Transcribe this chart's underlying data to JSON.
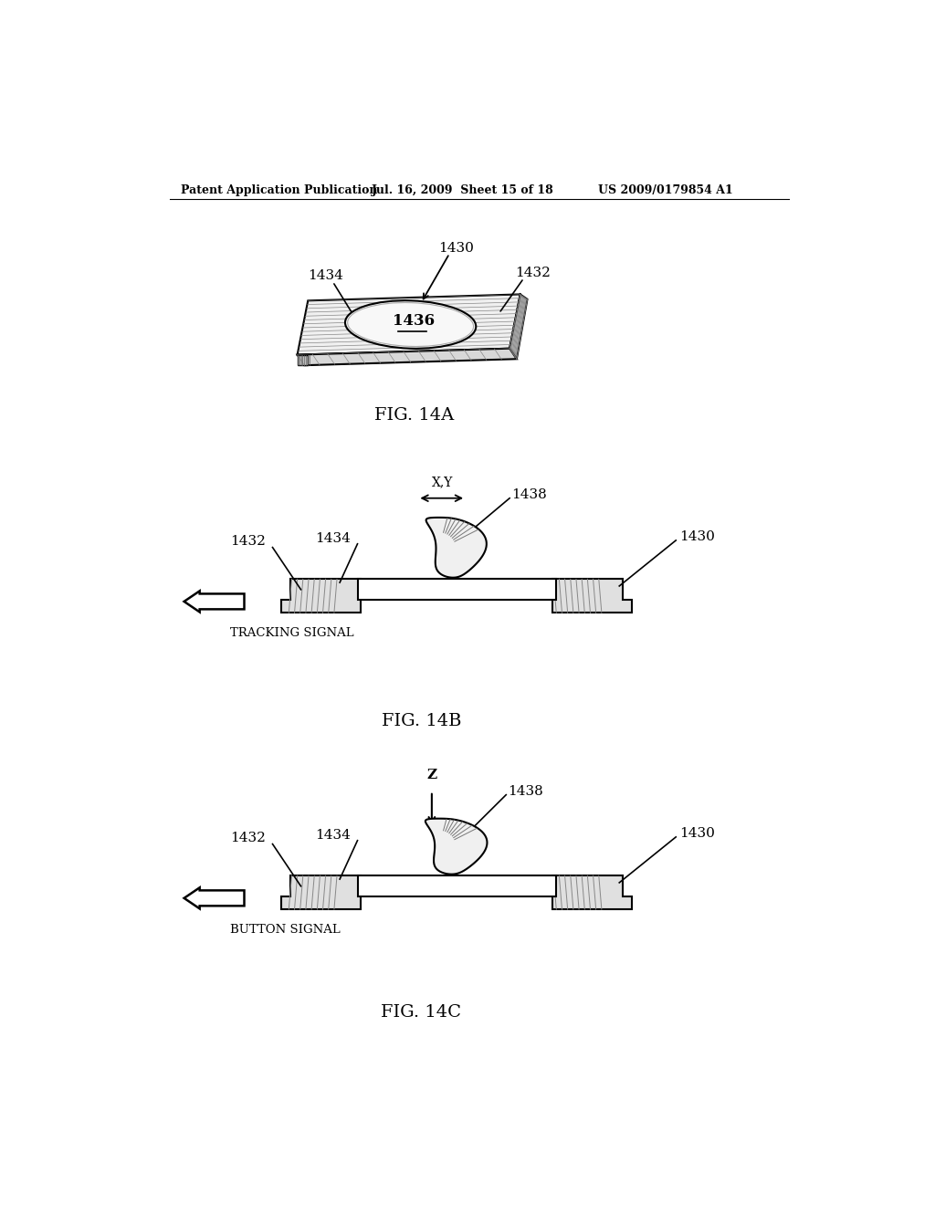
{
  "bg_color": "#ffffff",
  "line_color": "#000000",
  "header_text": "Patent Application Publication",
  "header_date": "Jul. 16, 2009  Sheet 15 of 18",
  "header_patent": "US 2009/0179854 A1",
  "fig14a_label": "FIG. 14A",
  "fig14b_label": "FIG. 14B",
  "fig14c_label": "FIG. 14C",
  "label_1430": "1430",
  "label_1432": "1432",
  "label_1434": "1434",
  "label_1436": "1436",
  "label_1438": "1438",
  "tracking_signal": "TRACKING SIGNAL",
  "button_signal": "BUTTON SIGNAL",
  "xy_label": "X,Y",
  "z_label": "Z"
}
